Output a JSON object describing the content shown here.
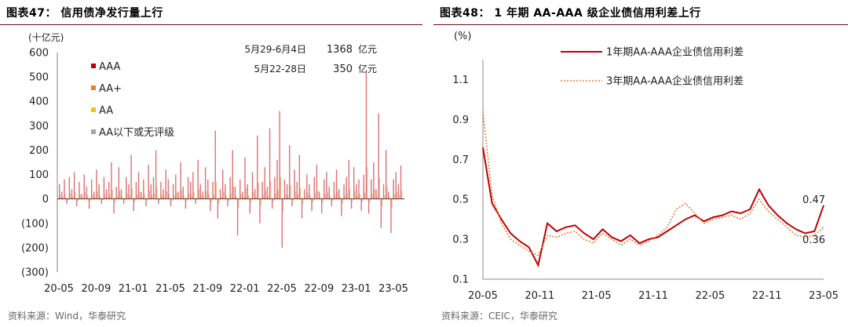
{
  "left": {
    "title": "图表47：  信用债净发行量上行",
    "source": "资料来源：Wind，华泰研究",
    "chart_data": {
      "type": "bar",
      "unit_label": "(十亿元)",
      "yticks": [
        "600",
        "500",
        "400",
        "300",
        "200",
        "100",
        "0",
        "(100)",
        "(200)",
        "(300)"
      ],
      "ylim": [
        -300,
        600
      ],
      "xticks": [
        "20-05",
        "20-09",
        "21-01",
        "21-05",
        "21-09",
        "22-01",
        "22-05",
        "22-09",
        "23-01",
        "23-05"
      ],
      "legend": [
        {
          "name": "AAA",
          "color": "#c00000"
        },
        {
          "name": "AA+",
          "color": "#ed7d31"
        },
        {
          "name": "AA",
          "color": "#ffc000"
        },
        {
          "name": "AA以下或无评级",
          "color": "#a5a5a5"
        }
      ],
      "annotations": [
        {
          "period": "5月29-6月4日",
          "value": "1368",
          "unit": "亿元"
        },
        {
          "period": "5月22-28日",
          "value": "350",
          "unit": "亿元"
        }
      ],
      "weeks_start": "2020-05",
      "aaa_weekly": [
        60,
        30,
        80,
        -20,
        90,
        40,
        110,
        -30,
        70,
        20,
        100,
        50,
        -40,
        80,
        30,
        120,
        60,
        -20,
        90,
        40,
        70,
        150,
        -60,
        50,
        130,
        40,
        -20,
        90,
        60,
        180,
        -50,
        70,
        110,
        30,
        80,
        -30,
        140,
        60,
        90,
        200,
        -20,
        70,
        40,
        120,
        80,
        -30,
        60,
        100,
        30,
        150,
        50,
        -40,
        90,
        70,
        110,
        -20,
        160,
        60,
        30,
        130,
        80,
        -50,
        70,
        280,
        -80,
        40,
        120,
        60,
        -30,
        90,
        200,
        50,
        -150,
        80,
        30,
        170,
        60,
        -60,
        110,
        40,
        260,
        -100,
        70,
        130,
        50,
        290,
        -40,
        90,
        160,
        360,
        -200,
        80,
        60,
        220,
        -30,
        120,
        70,
        180,
        -80,
        40,
        100,
        60,
        -50,
        90,
        140,
        30,
        -60,
        80,
        110,
        50,
        -30,
        70,
        120,
        40,
        -70,
        60,
        90,
        160,
        -40,
        130,
        60,
        80,
        -50,
        100,
        520,
        -60,
        80,
        150,
        40,
        350,
        -120,
        60,
        200,
        30,
        -140,
        80,
        110,
        60,
        137
      ],
      "other_weekly_scale": 0.25
    }
  },
  "right": {
    "title": "图表48：  1 年期 AA-AAA 级企业债信用利差上行",
    "source": "资料来源：CEIC，华泰研究",
    "chart_data": {
      "type": "line",
      "unit_label": "(%)",
      "ylim": [
        0.1,
        1.2
      ],
      "yticks": [
        "1.1",
        "0.9",
        "0.7",
        "0.5",
        "0.3",
        "0.1"
      ],
      "xticks": [
        "20-05",
        "20-11",
        "21-05",
        "21-11",
        "22-05",
        "22-11",
        "23-05"
      ],
      "series": [
        {
          "name": "1年期AA-AAA企业债信用利差",
          "color": "#c00000",
          "style": "solid",
          "x": [
            "2020-05",
            "2020-06",
            "2020-07",
            "2020-08",
            "2020-09",
            "2020-10",
            "2020-11",
            "2020-12",
            "2021-01",
            "2021-02",
            "2021-03",
            "2021-04",
            "2021-05",
            "2021-06",
            "2021-07",
            "2021-08",
            "2021-09",
            "2021-10",
            "2021-11",
            "2021-12",
            "2022-01",
            "2022-02",
            "2022-03",
            "2022-04",
            "2022-05",
            "2022-06",
            "2022-07",
            "2022-08",
            "2022-09",
            "2022-10",
            "2022-11",
            "2022-12",
            "2023-01",
            "2023-02",
            "2023-03",
            "2023-04",
            "2023-05",
            "2023-06"
          ],
          "y": [
            0.76,
            0.48,
            0.4,
            0.33,
            0.29,
            0.26,
            0.17,
            0.38,
            0.34,
            0.36,
            0.37,
            0.33,
            0.3,
            0.35,
            0.31,
            0.29,
            0.32,
            0.28,
            0.3,
            0.31,
            0.34,
            0.37,
            0.4,
            0.42,
            0.39,
            0.41,
            0.42,
            0.44,
            0.43,
            0.45,
            0.55,
            0.47,
            0.42,
            0.38,
            0.35,
            0.33,
            0.34,
            0.47
          ]
        },
        {
          "name": "3年期AA-AAA企业债信用利差",
          "color": "#ed7d31",
          "style": "dotted",
          "x": [
            "2020-05",
            "2020-06",
            "2020-07",
            "2020-08",
            "2020-09",
            "2020-10",
            "2020-11",
            "2020-12",
            "2021-01",
            "2021-02",
            "2021-03",
            "2021-04",
            "2021-05",
            "2021-06",
            "2021-07",
            "2021-08",
            "2021-09",
            "2021-10",
            "2021-11",
            "2021-12",
            "2022-01",
            "2022-02",
            "2022-03",
            "2022-04",
            "2022-05",
            "2022-06",
            "2022-07",
            "2022-08",
            "2022-09",
            "2022-10",
            "2022-11",
            "2022-12",
            "2023-01",
            "2023-02",
            "2023-03",
            "2023-04",
            "2023-05",
            "2023-06"
          ],
          "y": [
            0.94,
            0.52,
            0.38,
            0.3,
            0.27,
            0.24,
            0.22,
            0.32,
            0.31,
            0.33,
            0.34,
            0.3,
            0.28,
            0.33,
            0.3,
            0.27,
            0.3,
            0.27,
            0.29,
            0.32,
            0.36,
            0.45,
            0.48,
            0.43,
            0.38,
            0.4,
            0.41,
            0.42,
            0.4,
            0.43,
            0.5,
            0.44,
            0.4,
            0.36,
            0.32,
            0.31,
            0.32,
            0.36
          ]
        }
      ],
      "end_labels": [
        {
          "series": 0,
          "text": "0.47",
          "color": "#c00000"
        },
        {
          "series": 1,
          "text": "0.36",
          "color": "#222222"
        }
      ]
    }
  }
}
